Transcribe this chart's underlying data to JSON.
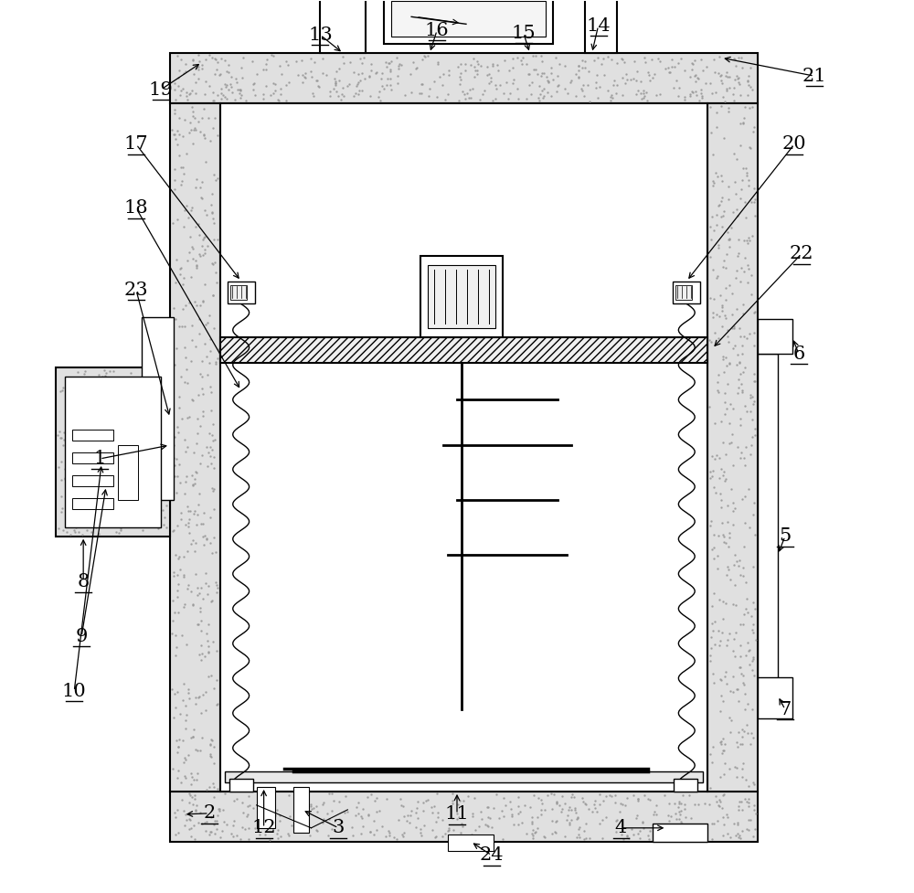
{
  "bg_color": "#ffffff",
  "line_color": "#000000",
  "fig_width": 10.0,
  "fig_height": 9.77
}
